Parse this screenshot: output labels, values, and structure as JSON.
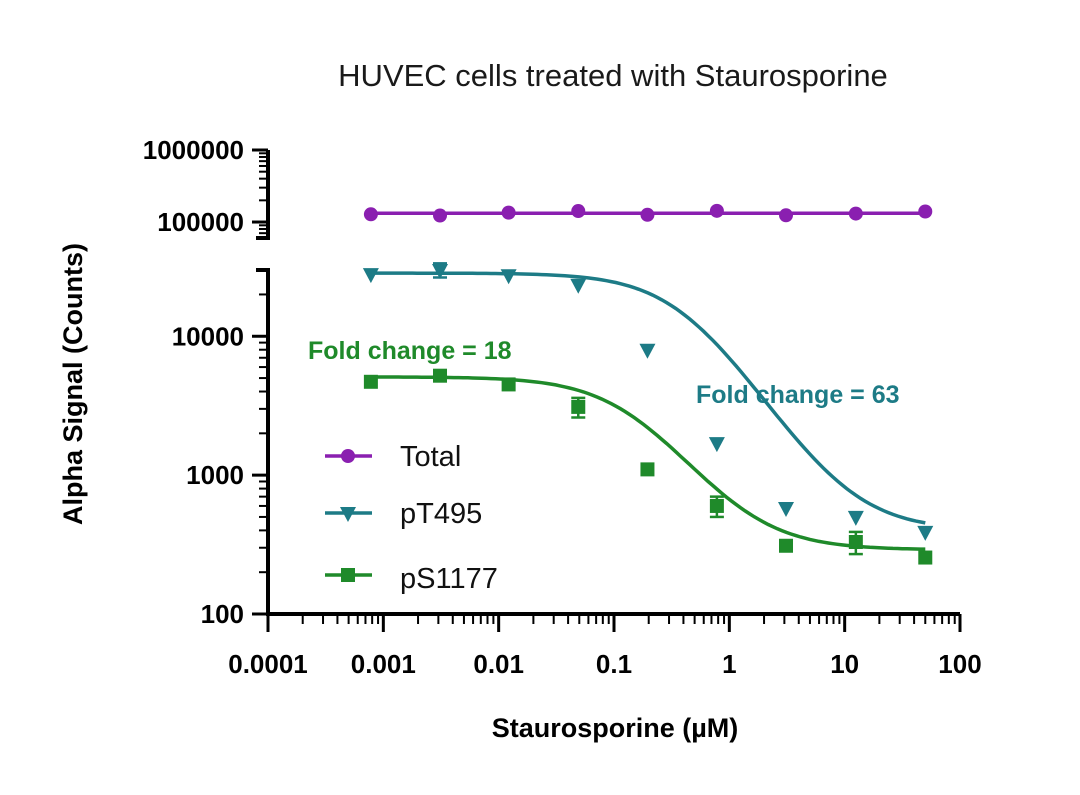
{
  "chart_data": {
    "type": "scatter",
    "title": "HUVEC cells treated with Staurosporine",
    "xlabel": "Staurosporine (µM)",
    "ylabel": "Alpha Signal (Counts)",
    "x_scale": "log",
    "y_scale": "log",
    "y_axis_break": true,
    "xlim": [
      0.0001,
      100
    ],
    "ylim_lower": [
      100,
      30000
    ],
    "ylim_upper": [
      60000,
      1000000
    ],
    "x_ticks": [
      "0.0001",
      "0.001",
      "0.01",
      "0.1",
      "1",
      "10",
      "100"
    ],
    "y_ticks_upper": [
      "1000000",
      "100000"
    ],
    "y_ticks_lower": [
      "10000",
      "1000",
      "100"
    ],
    "x": [
      0.00078,
      0.0031,
      0.0122,
      0.049,
      0.195,
      0.78,
      3.1,
      12.5,
      50
    ],
    "series": [
      {
        "name": "Total",
        "color": "#8a1fb0",
        "marker": "circle",
        "values": [
          128000,
          123000,
          135000,
          142000,
          126000,
          143000,
          124000,
          131000,
          140000
        ],
        "fit": "flat"
      },
      {
        "name": "pT495",
        "color": "#1d7b86",
        "marker": "triangle-down",
        "values": [
          28000,
          30000,
          27500,
          23500,
          8000,
          1700,
          580,
          500,
          390
        ],
        "errors": [
          0,
          3500,
          0,
          0,
          0,
          0,
          0,
          0,
          0
        ],
        "fit": {
          "top": 28500,
          "bottom": 400,
          "ec50": 0.4,
          "hill": 1.3
        }
      },
      {
        "name": "pS1177",
        "color": "#1f8a2a",
        "marker": "square",
        "values": [
          4700,
          5200,
          4500,
          3100,
          1100,
          600,
          310,
          330,
          255
        ],
        "errors": [
          0,
          0,
          0,
          500,
          0,
          100,
          0,
          60,
          0
        ],
        "fit": {
          "top": 5100,
          "bottom": 290,
          "ec50": 0.14,
          "hill": 1.25
        }
      }
    ],
    "annotations": [
      {
        "text": "Fold change = 18",
        "color": "#1f8a2a"
      },
      {
        "text": "Fold change = 63",
        "color": "#1d7b86"
      }
    ],
    "legend_position": "lower-left",
    "grid": false
  }
}
